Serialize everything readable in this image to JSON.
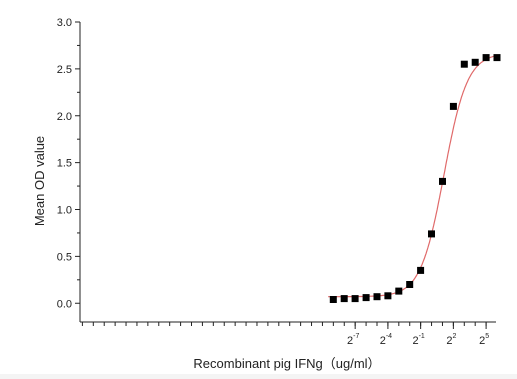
{
  "chart_data": {
    "type": "scatter",
    "title": "",
    "xlabel": "Recombinant pig  IFNg（ug/ml）",
    "ylabel": "Mean OD value",
    "x_scale": "log2",
    "x_range": [
      2e-10,
      60
    ],
    "ylim": [
      -0.2,
      3.0
    ],
    "y_ticks": [
      "0.0",
      "0.5",
      "1.0",
      "1.5",
      "2.0",
      "2.5",
      "3.0"
    ],
    "x_ticks": [
      {
        "base": "2",
        "exp": "-7",
        "value": 0.0078125
      },
      {
        "base": "2",
        "exp": "-4",
        "value": 0.0625
      },
      {
        "base": "2",
        "exp": "-1",
        "value": 0.5
      },
      {
        "base": "2",
        "exp": "2",
        "value": 4
      },
      {
        "base": "2",
        "exp": "5",
        "value": 32
      }
    ],
    "grid": false,
    "series": [
      {
        "marker": "square",
        "color": "#000000",
        "x": [
          0.00195,
          0.0039,
          0.0078,
          0.0156,
          0.03125,
          0.0625,
          0.125,
          0.25,
          0.5,
          1,
          2,
          4,
          8,
          16,
          32,
          64
        ],
        "y": [
          0.04,
          0.05,
          0.05,
          0.06,
          0.07,
          0.08,
          0.13,
          0.2,
          0.35,
          0.74,
          1.3,
          2.1,
          2.55,
          2.57,
          2.62,
          2.62
        ]
      }
    ],
    "fit_curve": {
      "color": "#e06a6a",
      "bottom": 0.07,
      "top": 2.67,
      "ec50": 2.2,
      "hill": 1.35
    }
  }
}
